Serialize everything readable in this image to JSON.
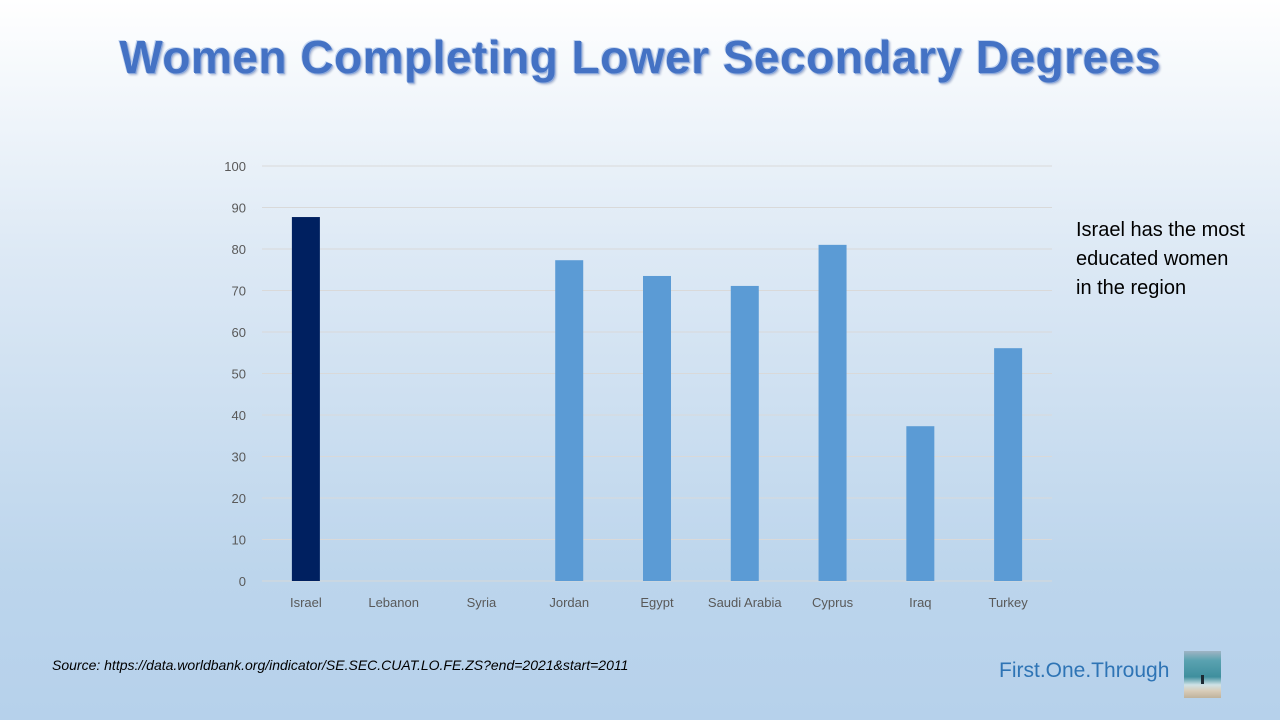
{
  "title": "Women Completing Lower Secondary Degrees",
  "annotation": "Israel has the most educated women in the region",
  "source": "Source: https://data.worldbank.org/indicator/SE.SEC.CUAT.LO.FE.ZS?end=2021&start=2011",
  "brand": "First.One.Through",
  "colors": {
    "highlight": "#002060",
    "bar": "#5b9bd5",
    "grid": "#d9d9d9",
    "tick": "#595959"
  },
  "chart_data": {
    "type": "bar",
    "title": "Women Completing Lower Secondary Degrees",
    "categories": [
      "Israel",
      "Lebanon",
      "Syria",
      "Jordan",
      "Egypt",
      "Saudi Arabia",
      "Cyprus",
      "Iraq",
      "Turkey"
    ],
    "values": [
      87.7,
      null,
      null,
      77.3,
      73.5,
      71.1,
      81.0,
      37.3,
      56.1
    ],
    "highlighted": [
      "Israel"
    ],
    "ylim": [
      0,
      100
    ],
    "yticks": [
      0,
      10,
      20,
      30,
      40,
      50,
      60,
      70,
      80,
      90,
      100
    ],
    "grid": true,
    "xlabel": "",
    "ylabel": ""
  }
}
